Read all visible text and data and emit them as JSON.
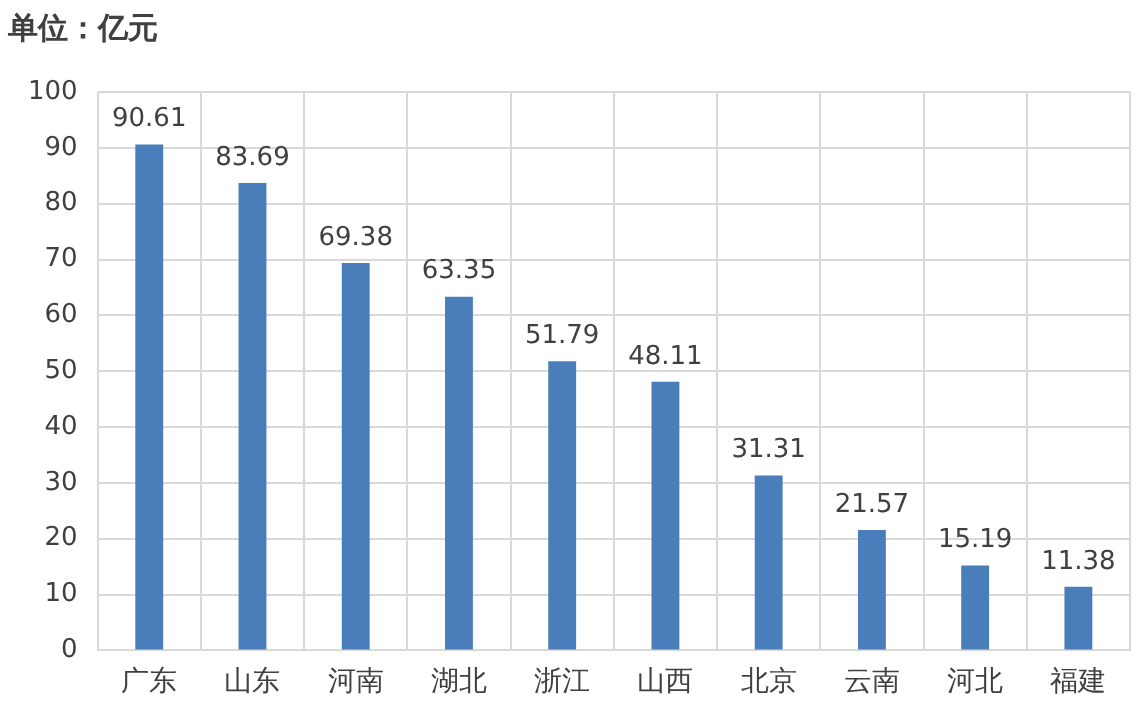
{
  "chart_data": {
    "type": "bar",
    "title": "单位：亿元",
    "categories": [
      "广东",
      "山东",
      "河南",
      "湖北",
      "浙江",
      "山西",
      "北京",
      "云南",
      "河北",
      "福建"
    ],
    "values": [
      90.61,
      83.69,
      69.38,
      63.35,
      51.79,
      48.11,
      31.31,
      21.57,
      15.19,
      11.38
    ],
    "color": "#4a7ebb",
    "ylim": [
      0,
      100
    ],
    "yticks": [
      0,
      10,
      20,
      30,
      40,
      50,
      60,
      70,
      80,
      90,
      100
    ],
    "grid": true,
    "data_labels": true
  }
}
